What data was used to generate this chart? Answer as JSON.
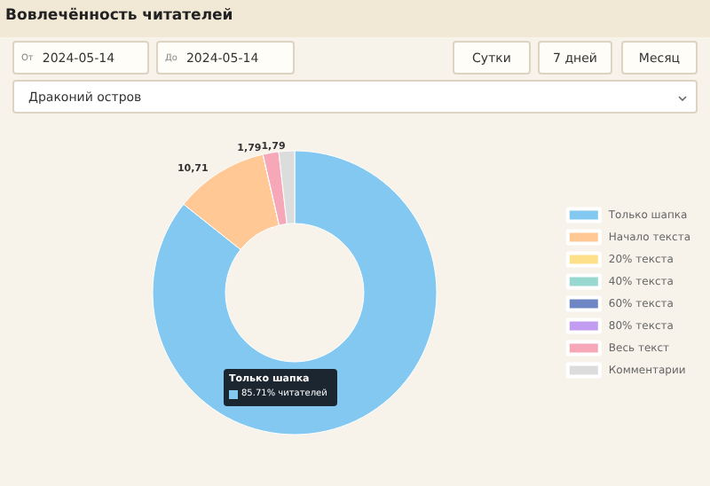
{
  "chart_data": {
    "type": "donut",
    "title": "Вовлечённость читателей",
    "categories": [
      "Только шапка",
      "Начало текста",
      "20% текста",
      "40% текста",
      "60% текста",
      "80% текста",
      "Весь текст",
      "Комментарии"
    ],
    "values": [
      85.71,
      10.71,
      0,
      0,
      0,
      0,
      1.79,
      1.79
    ],
    "colors": [
      "#82c8f0",
      "#ffc895",
      "#ffe08a",
      "#98d8d0",
      "#6f86c4",
      "#c29cf0",
      "#f7a8b8",
      "#dcdcdc"
    ],
    "value_labels": [
      null,
      "10,71",
      null,
      null,
      null,
      null,
      "1,79",
      "1,79"
    ],
    "legend": "right",
    "annotations": [
      "От",
      "2024-05-14",
      "До",
      "2024-05-14",
      "Сутки",
      "7 дней",
      "Месяц",
      "Драконий остров",
      "Только шапка",
      "85.71% читателей"
    ]
  }
}
